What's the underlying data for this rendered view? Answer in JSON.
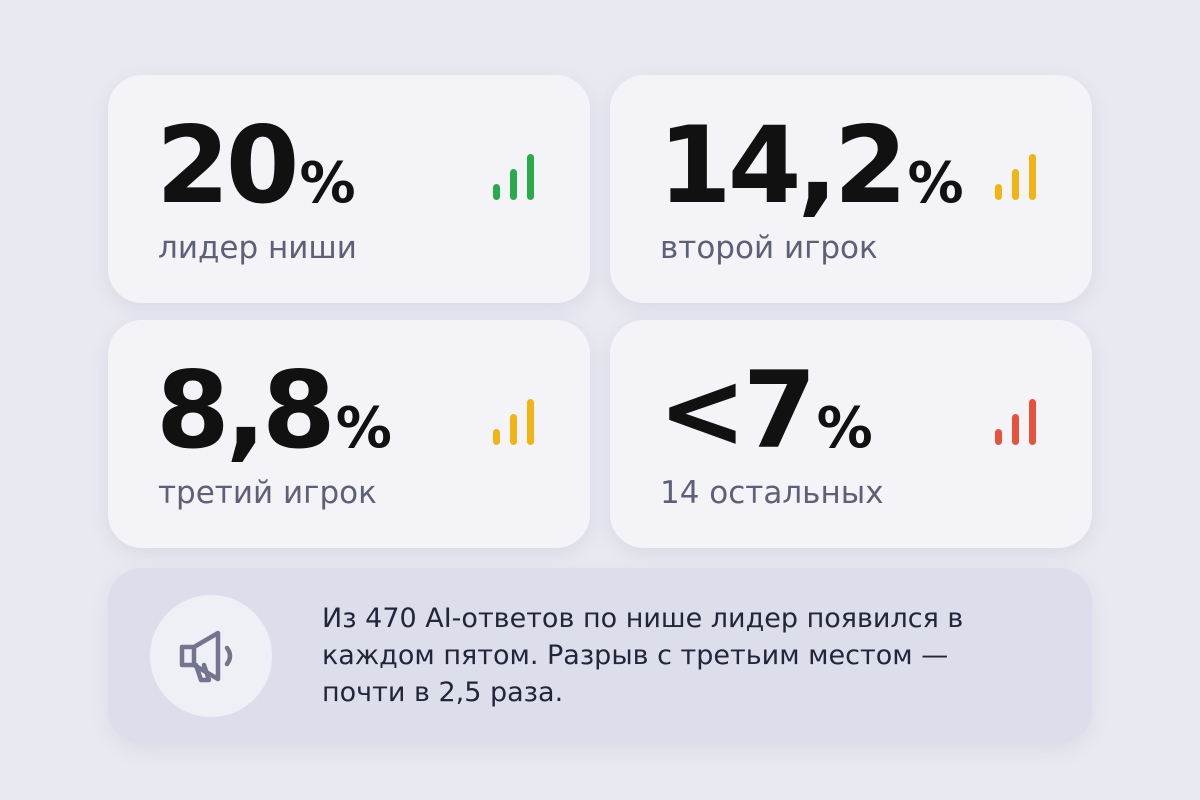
{
  "cards": [
    {
      "value": "20",
      "unit": "%",
      "label": "лидер ниши",
      "signal_color": "#2aaa4a",
      "icon": "signal-bars-icon"
    },
    {
      "value": "14,2",
      "unit": "%",
      "label": "второй игрок",
      "signal_color": "#f0b414",
      "icon": "signal-bars-icon"
    },
    {
      "value": "8,8",
      "unit": "%",
      "label": "третий игрок",
      "signal_color": "#f0b414",
      "icon": "signal-bars-icon"
    },
    {
      "value": "<7",
      "unit": "%",
      "label": "14 остальных",
      "signal_color": "#e5533c",
      "icon": "signal-bars-icon"
    }
  ],
  "note": {
    "icon": "megaphone-icon",
    "text": "Из 470 AI-ответов по нише лидер появился в каждом пятом. Разрыв с третьим местом — почти в 2,5 раза."
  }
}
